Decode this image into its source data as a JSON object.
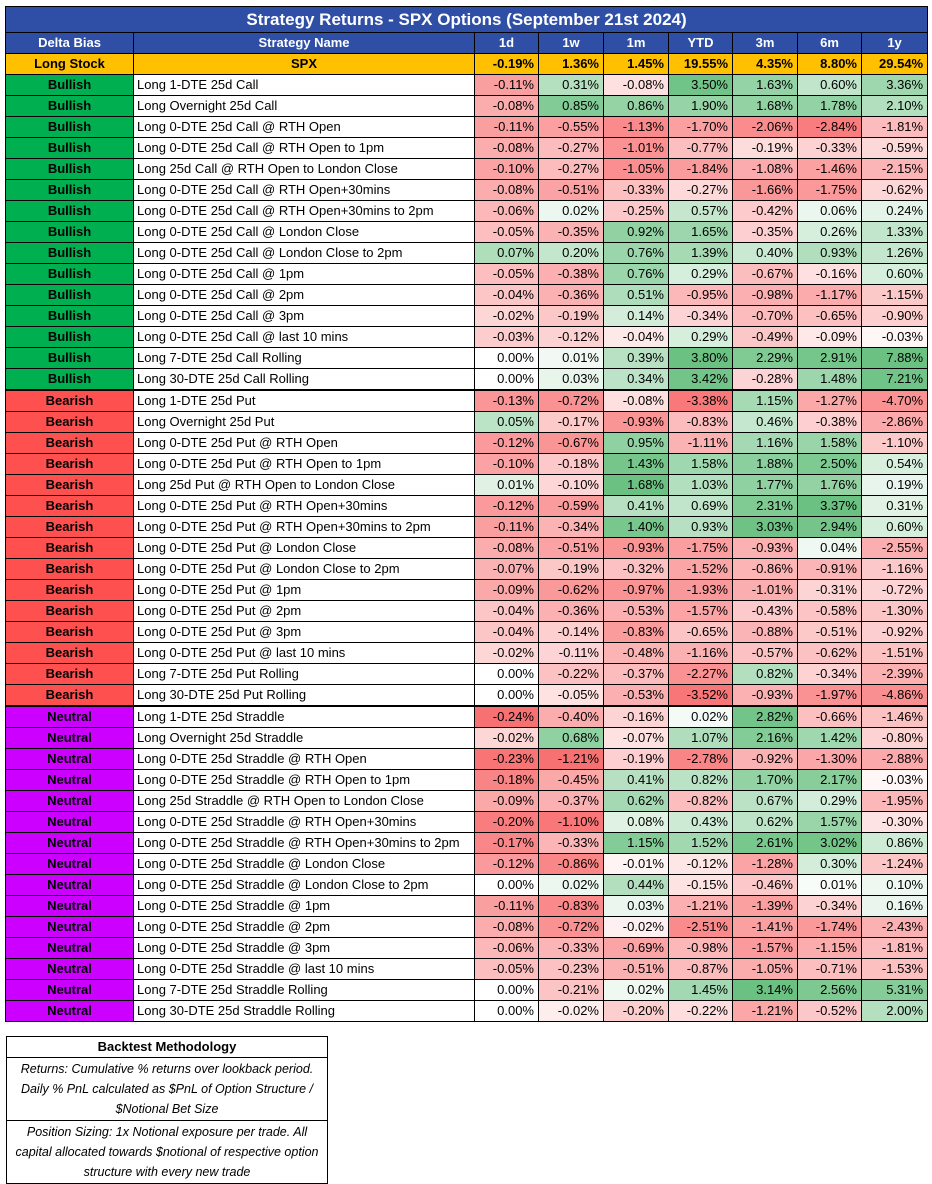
{
  "title": "Strategy Returns - SPX Options (September 21st 2024)",
  "headers": [
    "Delta Bias",
    "Strategy Name",
    "1d",
    "1w",
    "1m",
    "YTD",
    "3m",
    "6m",
    "1y"
  ],
  "colors": {
    "header_bg": "#2f4fa6",
    "stock_bg": "#ffc000",
    "Bullish": "#00b050",
    "Bearish": "#ff5050",
    "Neutral": "#cc00ff",
    "positive": "#63be7b",
    "negative": "#f8696b"
  },
  "stock_row": {
    "bias": "Long Stock",
    "name": "SPX",
    "values": [
      "-0.19%",
      "1.36%",
      "1.45%",
      "19.55%",
      "4.35%",
      "8.80%",
      "29.54%"
    ]
  },
  "rows": [
    {
      "bias": "Bullish",
      "name": "Long 1-DTE 25d Call",
      "values": [
        "-0.11%",
        "0.31%",
        "-0.08%",
        "3.50%",
        "1.63%",
        "0.60%",
        "3.36%"
      ]
    },
    {
      "bias": "Bullish",
      "name": "Long Overnight 25d Call",
      "values": [
        "-0.08%",
        "0.85%",
        "0.86%",
        "1.90%",
        "1.68%",
        "1.78%",
        "2.10%"
      ]
    },
    {
      "bias": "Bullish",
      "name": "Long 0-DTE 25d Call @ RTH Open",
      "values": [
        "-0.11%",
        "-0.55%",
        "-1.13%",
        "-1.70%",
        "-2.06%",
        "-2.84%",
        "-1.81%"
      ]
    },
    {
      "bias": "Bullish",
      "name": "Long 0-DTE 25d Call @ RTH Open to 1pm",
      "values": [
        "-0.08%",
        "-0.27%",
        "-1.01%",
        "-0.77%",
        "-0.19%",
        "-0.33%",
        "-0.59%"
      ]
    },
    {
      "bias": "Bullish",
      "name": "Long 25d Call @ RTH Open to London Close",
      "values": [
        "-0.10%",
        "-0.27%",
        "-1.05%",
        "-1.84%",
        "-1.08%",
        "-1.46%",
        "-2.15%"
      ]
    },
    {
      "bias": "Bullish",
      "name": "Long 0-DTE 25d Call @ RTH Open+30mins",
      "values": [
        "-0.08%",
        "-0.51%",
        "-0.33%",
        "-0.27%",
        "-1.66%",
        "-1.75%",
        "-0.62%"
      ]
    },
    {
      "bias": "Bullish",
      "name": "Long 0-DTE 25d Call @ RTH Open+30mins to 2pm",
      "values": [
        "-0.06%",
        "0.02%",
        "-0.25%",
        "0.57%",
        "-0.42%",
        "0.06%",
        "0.24%"
      ]
    },
    {
      "bias": "Bullish",
      "name": "Long 0-DTE 25d Call @ London Close",
      "values": [
        "-0.05%",
        "-0.35%",
        "0.92%",
        "1.65%",
        "-0.35%",
        "0.26%",
        "1.33%"
      ]
    },
    {
      "bias": "Bullish",
      "name": "Long 0-DTE 25d Call @ London Close to 2pm",
      "values": [
        "0.07%",
        "0.20%",
        "0.76%",
        "1.39%",
        "0.40%",
        "0.93%",
        "1.26%"
      ]
    },
    {
      "bias": "Bullish",
      "name": "Long 0-DTE 25d Call @ 1pm",
      "values": [
        "-0.05%",
        "-0.38%",
        "0.76%",
        "0.29%",
        "-0.67%",
        "-0.16%",
        "0.60%"
      ]
    },
    {
      "bias": "Bullish",
      "name": "Long 0-DTE 25d Call @ 2pm",
      "values": [
        "-0.04%",
        "-0.36%",
        "0.51%",
        "-0.95%",
        "-0.98%",
        "-1.17%",
        "-1.15%"
      ]
    },
    {
      "bias": "Bullish",
      "name": "Long 0-DTE 25d Call @ 3pm",
      "values": [
        "-0.02%",
        "-0.19%",
        "0.14%",
        "-0.34%",
        "-0.70%",
        "-0.65%",
        "-0.90%"
      ]
    },
    {
      "bias": "Bullish",
      "name": "Long 0-DTE 25d Call @ last 10 mins",
      "values": [
        "-0.03%",
        "-0.12%",
        "-0.04%",
        "0.29%",
        "-0.49%",
        "-0.09%",
        "-0.03%"
      ]
    },
    {
      "bias": "Bullish",
      "name": "Long 7-DTE 25d Call Rolling",
      "values": [
        "0.00%",
        "0.01%",
        "0.39%",
        "3.80%",
        "2.29%",
        "2.91%",
        "7.88%"
      ]
    },
    {
      "bias": "Bullish",
      "name": "Long 30-DTE 25d Call Rolling",
      "values": [
        "0.00%",
        "0.03%",
        "0.34%",
        "3.42%",
        "-0.28%",
        "1.48%",
        "7.21%"
      ]
    },
    {
      "bias": "Bearish",
      "name": "Long 1-DTE 25d Put",
      "values": [
        "-0.13%",
        "-0.72%",
        "-0.08%",
        "-3.38%",
        "1.15%",
        "-1.27%",
        "-4.70%"
      ]
    },
    {
      "bias": "Bearish",
      "name": "Long Overnight 25d Put",
      "values": [
        "0.05%",
        "-0.17%",
        "-0.93%",
        "-0.83%",
        "0.46%",
        "-0.38%",
        "-2.86%"
      ]
    },
    {
      "bias": "Bearish",
      "name": "Long 0-DTE 25d Put @ RTH Open",
      "values": [
        "-0.12%",
        "-0.67%",
        "0.95%",
        "-1.11%",
        "1.16%",
        "1.58%",
        "-1.10%"
      ]
    },
    {
      "bias": "Bearish",
      "name": "Long 0-DTE 25d Put @ RTH Open to 1pm",
      "values": [
        "-0.10%",
        "-0.18%",
        "1.43%",
        "1.58%",
        "1.88%",
        "2.50%",
        "0.54%"
      ]
    },
    {
      "bias": "Bearish",
      "name": "Long 25d Put @ RTH Open to London Close",
      "values": [
        "0.01%",
        "-0.10%",
        "1.68%",
        "1.03%",
        "1.77%",
        "1.76%",
        "0.19%"
      ]
    },
    {
      "bias": "Bearish",
      "name": "Long 0-DTE 25d Put @ RTH Open+30mins",
      "values": [
        "-0.12%",
        "-0.59%",
        "0.41%",
        "0.69%",
        "2.31%",
        "3.37%",
        "0.31%"
      ]
    },
    {
      "bias": "Bearish",
      "name": "Long 0-DTE 25d Put @ RTH Open+30mins to 2pm",
      "values": [
        "-0.11%",
        "-0.34%",
        "1.40%",
        "0.93%",
        "3.03%",
        "2.94%",
        "0.60%"
      ]
    },
    {
      "bias": "Bearish",
      "name": "Long 0-DTE 25d Put @ London Close",
      "values": [
        "-0.08%",
        "-0.51%",
        "-0.93%",
        "-1.75%",
        "-0.93%",
        "0.04%",
        "-2.55%"
      ]
    },
    {
      "bias": "Bearish",
      "name": "Long 0-DTE 25d Put @ London Close to 2pm",
      "values": [
        "-0.07%",
        "-0.19%",
        "-0.32%",
        "-1.52%",
        "-0.86%",
        "-0.91%",
        "-1.16%"
      ]
    },
    {
      "bias": "Bearish",
      "name": "Long 0-DTE 25d Put @ 1pm",
      "values": [
        "-0.09%",
        "-0.62%",
        "-0.97%",
        "-1.93%",
        "-1.01%",
        "-0.31%",
        "-0.72%"
      ]
    },
    {
      "bias": "Bearish",
      "name": "Long 0-DTE 25d Put @ 2pm",
      "values": [
        "-0.04%",
        "-0.36%",
        "-0.53%",
        "-1.57%",
        "-0.43%",
        "-0.58%",
        "-1.30%"
      ]
    },
    {
      "bias": "Bearish",
      "name": "Long 0-DTE 25d Put @ 3pm",
      "values": [
        "-0.04%",
        "-0.14%",
        "-0.83%",
        "-0.65%",
        "-0.88%",
        "-0.51%",
        "-0.92%"
      ]
    },
    {
      "bias": "Bearish",
      "name": "Long 0-DTE 25d Put @ last 10 mins",
      "values": [
        "-0.02%",
        "-0.11%",
        "-0.48%",
        "-1.16%",
        "-0.57%",
        "-0.62%",
        "-1.51%"
      ]
    },
    {
      "bias": "Bearish",
      "name": "Long 7-DTE 25d Put Rolling",
      "values": [
        "0.00%",
        "-0.22%",
        "-0.37%",
        "-2.27%",
        "0.82%",
        "-0.34%",
        "-2.39%"
      ]
    },
    {
      "bias": "Bearish",
      "name": "Long 30-DTE 25d Put Rolling",
      "values": [
        "0.00%",
        "-0.05%",
        "-0.53%",
        "-3.52%",
        "-0.93%",
        "-1.97%",
        "-4.86%"
      ]
    },
    {
      "bias": "Neutral",
      "name": "Long 1-DTE 25d Straddle",
      "values": [
        "-0.24%",
        "-0.40%",
        "-0.16%",
        "0.02%",
        "2.82%",
        "-0.66%",
        "-1.46%"
      ]
    },
    {
      "bias": "Neutral",
      "name": "Long Overnight 25d Straddle",
      "values": [
        "-0.02%",
        "0.68%",
        "-0.07%",
        "1.07%",
        "2.16%",
        "1.42%",
        "-0.80%"
      ]
    },
    {
      "bias": "Neutral",
      "name": "Long 0-DTE 25d Straddle @ RTH Open",
      "values": [
        "-0.23%",
        "-1.21%",
        "-0.19%",
        "-2.78%",
        "-0.92%",
        "-1.30%",
        "-2.88%"
      ]
    },
    {
      "bias": "Neutral",
      "name": "Long 0-DTE 25d Straddle @ RTH Open to 1pm",
      "values": [
        "-0.18%",
        "-0.45%",
        "0.41%",
        "0.82%",
        "1.70%",
        "2.17%",
        "-0.03%"
      ]
    },
    {
      "bias": "Neutral",
      "name": "Long 25d Straddle @ RTH Open to London Close",
      "values": [
        "-0.09%",
        "-0.37%",
        "0.62%",
        "-0.82%",
        "0.67%",
        "0.29%",
        "-1.95%"
      ]
    },
    {
      "bias": "Neutral",
      "name": "Long 0-DTE 25d Straddle @ RTH Open+30mins",
      "values": [
        "-0.20%",
        "-1.10%",
        "0.08%",
        "0.43%",
        "0.62%",
        "1.57%",
        "-0.30%"
      ]
    },
    {
      "bias": "Neutral",
      "name": "Long 0-DTE 25d Straddle @ RTH Open+30mins to 2pm",
      "values": [
        "-0.17%",
        "-0.33%",
        "1.15%",
        "1.52%",
        "2.61%",
        "3.02%",
        "0.86%"
      ]
    },
    {
      "bias": "Neutral",
      "name": "Long 0-DTE 25d Straddle @ London Close",
      "values": [
        "-0.12%",
        "-0.86%",
        "-0.01%",
        "-0.12%",
        "-1.28%",
        "0.30%",
        "-1.24%"
      ]
    },
    {
      "bias": "Neutral",
      "name": "Long 0-DTE 25d Straddle @ London Close to 2pm",
      "values": [
        "0.00%",
        "0.02%",
        "0.44%",
        "-0.15%",
        "-0.46%",
        "0.01%",
        "0.10%"
      ]
    },
    {
      "bias": "Neutral",
      "name": "Long 0-DTE 25d Straddle @ 1pm",
      "values": [
        "-0.11%",
        "-0.83%",
        "0.03%",
        "-1.21%",
        "-1.39%",
        "-0.34%",
        "0.16%"
      ]
    },
    {
      "bias": "Neutral",
      "name": "Long 0-DTE 25d Straddle @ 2pm",
      "values": [
        "-0.08%",
        "-0.72%",
        "-0.02%",
        "-2.51%",
        "-1.41%",
        "-1.74%",
        "-2.43%"
      ]
    },
    {
      "bias": "Neutral",
      "name": "Long 0-DTE 25d Straddle @ 3pm",
      "values": [
        "-0.06%",
        "-0.33%",
        "-0.69%",
        "-0.98%",
        "-1.57%",
        "-1.15%",
        "-1.81%"
      ]
    },
    {
      "bias": "Neutral",
      "name": "Long 0-DTE 25d Straddle @ last 10 mins",
      "values": [
        "-0.05%",
        "-0.23%",
        "-0.51%",
        "-0.87%",
        "-1.05%",
        "-0.71%",
        "-1.53%"
      ]
    },
    {
      "bias": "Neutral",
      "name": "Long 7-DTE 25d Straddle Rolling",
      "values": [
        "0.00%",
        "-0.21%",
        "0.02%",
        "1.45%",
        "3.14%",
        "2.56%",
        "5.31%"
      ]
    },
    {
      "bias": "Neutral",
      "name": "Long 30-DTE 25d Straddle Rolling",
      "values": [
        "0.00%",
        "-0.02%",
        "-0.20%",
        "-0.22%",
        "-1.21%",
        "-0.52%",
        "2.00%"
      ]
    }
  ],
  "methodology": {
    "title": "Backtest Methodology",
    "returns": "Returns: Cumulative % returns over lookback period. Daily % PnL calculated as $PnL of Option Structure / $Notional Bet Size",
    "sizing": "Position Sizing: 1x Notional exposure per trade. All capital allocated towards $notional of respective option structure with every new trade"
  }
}
